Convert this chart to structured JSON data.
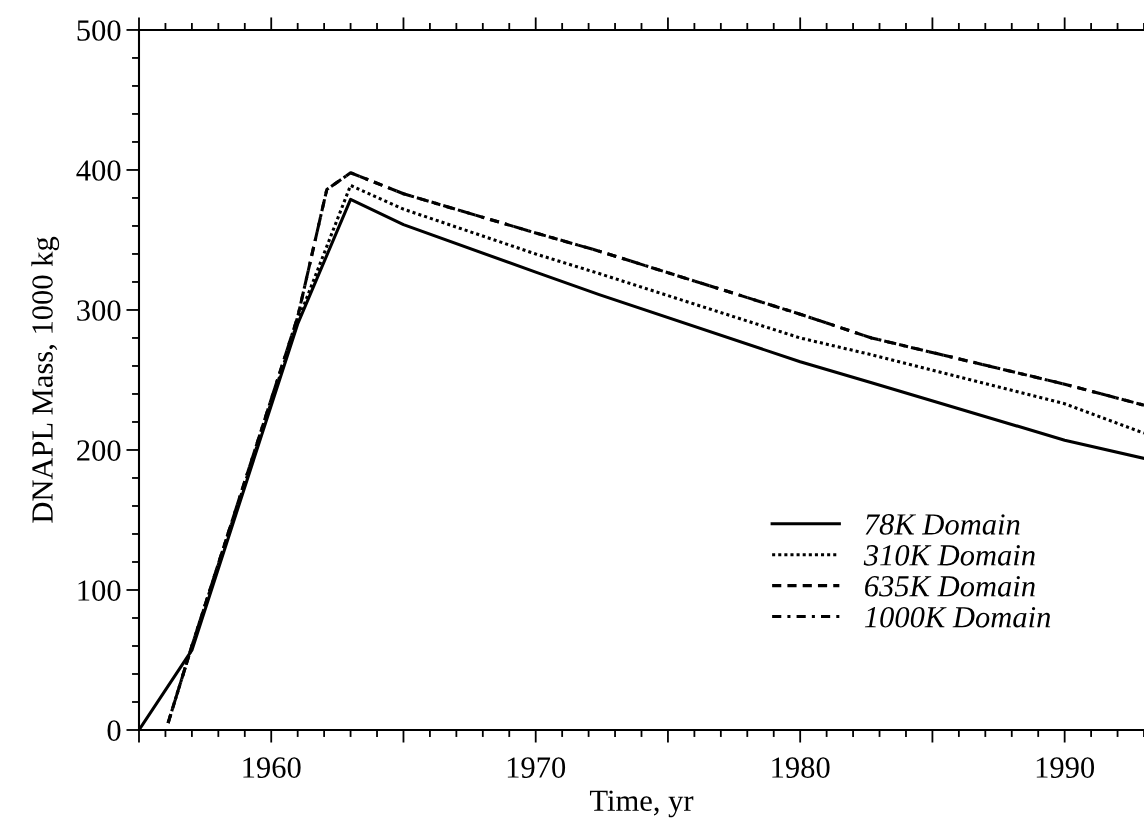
{
  "chart_data": {
    "type": "line",
    "xlabel": "Time, yr",
    "ylabel": "DNAPL Mass, 1000 kg",
    "xlim": [
      1955,
      1993
    ],
    "ylim": [
      0,
      500
    ],
    "xticks": [
      {
        "value": 1955,
        "label": null
      },
      1960,
      {
        "value": 1965,
        "label": null
      },
      1970,
      {
        "value": 1975,
        "label": null
      },
      1980,
      {
        "value": 1985,
        "label": null
      },
      1990
    ],
    "yticks": [
      0,
      100,
      200,
      300,
      400,
      500
    ],
    "grid": false,
    "legend": "bottom right",
    "marker": "none",
    "series": [
      {
        "name": "78K Domain",
        "color": "#000000",
        "line_style": "solid",
        "x": [
          1955,
          1957,
          1961,
          1963,
          1965,
          1970,
          1972.4,
          1980,
          1982.7,
          1990,
          1993
        ],
        "values": [
          0,
          57,
          290,
          379,
          361,
          327,
          311,
          263,
          248,
          207,
          194
        ]
      },
      {
        "name": "310K Domain",
        "color": "#000000",
        "line_style": "dotted",
        "x": [
          1956.1,
          1957,
          1961,
          1963,
          1965,
          1970,
          1972.4,
          1980,
          1982.7,
          1990,
          1993
        ],
        "values": [
          5,
          60,
          292,
          389,
          372,
          340,
          326,
          280,
          268,
          233,
          212
        ]
      },
      {
        "name": "635K Domain",
        "color": "#000000",
        "line_style": "dashed",
        "x": [
          1956.1,
          1957,
          1961,
          1962.1,
          1963,
          1965,
          1970,
          1972.4,
          1980,
          1982.7,
          1990,
          1993
        ],
        "values": [
          5,
          60,
          295,
          386,
          398,
          383,
          355,
          342,
          297,
          280,
          247,
          232
        ]
      },
      {
        "name": "1000K Domain",
        "color": "#000000",
        "line_style": "dashdot",
        "x": [
          1956.1,
          1957,
          1961,
          1962.1,
          1963,
          1965,
          1970,
          1972.4,
          1980,
          1982.7,
          1990,
          1993
        ],
        "values": [
          5,
          60,
          295,
          386,
          398,
          383,
          355,
          342,
          297,
          280,
          247,
          232
        ]
      }
    ]
  }
}
